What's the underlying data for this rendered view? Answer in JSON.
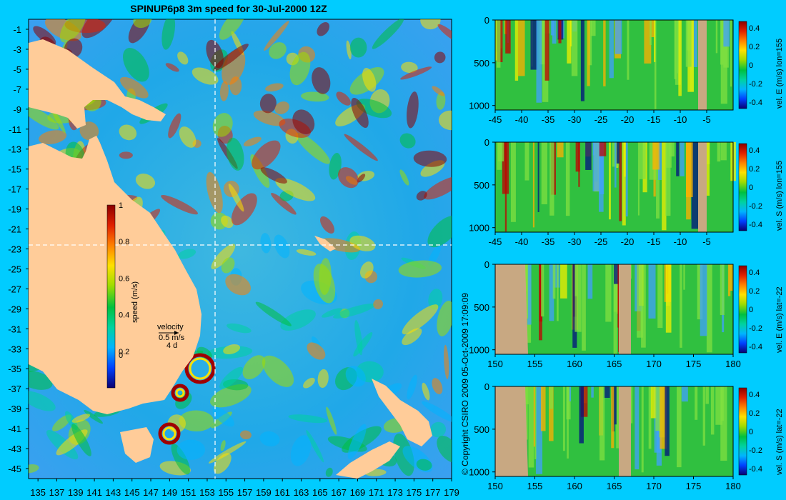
{
  "title": "SPINUP6p8 3m speed for 30-Jul-2000 12Z",
  "copyright": "© Copyright CSIRO 2009  05-Oct-2009 17:09:09",
  "colors": {
    "background": "#00ccff",
    "land": "#ffcc99",
    "section_land": "#c8a882",
    "ramp": [
      "#0a0070",
      "#0040ff",
      "#00b4ff",
      "#00d2a0",
      "#00c040",
      "#a0dc00",
      "#ffe000",
      "#ff8000",
      "#e02000",
      "#8c0000"
    ]
  },
  "map": {
    "cbar": {
      "label": "speed (m/s)",
      "ticks": [
        "1",
        "0.8",
        "0.6",
        "0.4",
        "0.2",
        "0"
      ]
    },
    "velocity_key": {
      "label": "velocity",
      "speed": "0.5 m/s",
      "time": "4 d"
    },
    "xticks": [
      "135",
      "137",
      "139",
      "141",
      "143",
      "145",
      "147",
      "149",
      "151",
      "153",
      "155",
      "157",
      "159",
      "161",
      "163",
      "165",
      "167",
      "169",
      "171",
      "173",
      "175",
      "177",
      "179"
    ],
    "yticks": [
      "-1",
      "-3",
      "-5",
      "-7",
      "-9",
      "-11",
      "-13",
      "-15",
      "-17",
      "-19",
      "-21",
      "-23",
      "-25",
      "-27",
      "-29",
      "-31",
      "-33",
      "-35",
      "-37",
      "-39",
      "-41",
      "-43",
      "-45"
    ]
  },
  "panels": [
    {
      "label": "vel. E (m/s) lon=155",
      "xticks": [
        "-45",
        "-40",
        "-35",
        "-30",
        "-25",
        "-20",
        "-15",
        "-10",
        "-5"
      ],
      "yticks": [
        "0",
        "500",
        "1000"
      ],
      "cticks": [
        "0.4",
        "0.2",
        "0",
        "-0.2",
        "-0.4"
      ]
    },
    {
      "label": "vel. S (m/s) lon=155",
      "xticks": [
        "-45",
        "-40",
        "-35",
        "-30",
        "-25",
        "-20",
        "-15",
        "-10",
        "-5"
      ],
      "yticks": [
        "0",
        "500",
        "1000"
      ],
      "cticks": [
        "0.4",
        "0.2",
        "0",
        "-0.2",
        "-0.4"
      ]
    },
    {
      "label": "vel. E (m/s) lat=-22",
      "xticks": [
        "150",
        "155",
        "160",
        "165",
        "170",
        "175",
        "180"
      ],
      "yticks": [
        "0",
        "500",
        "1000"
      ],
      "cticks": [
        "0.4",
        "0.2",
        "0",
        "-0.2",
        "-0.4"
      ]
    },
    {
      "label": "vel. S (m/s) lat=-22",
      "xticks": [
        "150",
        "155",
        "160",
        "165",
        "170",
        "175",
        "180"
      ],
      "yticks": [
        "0",
        "500",
        "1000"
      ],
      "cticks": [
        "0.4",
        "0.2",
        "0",
        "-0.2",
        "-0.4"
      ]
    }
  ],
  "chart_data": [
    {
      "type": "heatmap",
      "title": "SPINUP6p8 3m speed for 30-Jul-2000 12Z",
      "xlabel": "",
      "ylabel": "",
      "xlim": [
        135,
        180
      ],
      "ylim": [
        -45,
        0
      ],
      "colorbar": {
        "label": "speed (m/s)",
        "range": [
          0,
          1
        ]
      },
      "xticks": [
        135,
        137,
        139,
        141,
        143,
        145,
        147,
        149,
        151,
        153,
        155,
        157,
        159,
        161,
        163,
        165,
        167,
        169,
        171,
        173,
        175,
        177,
        179
      ],
      "yticks": [
        -1,
        -3,
        -5,
        -7,
        -9,
        -11,
        -13,
        -15,
        -17,
        -19,
        -21,
        -23,
        -25,
        -27,
        -29,
        -31,
        -33,
        -35,
        -37,
        -39,
        -41,
        -43,
        -45
      ],
      "section_lines": {
        "lon": 155,
        "lat": -22
      }
    },
    {
      "type": "heatmap",
      "colorbar": {
        "label": "vel. E (m/s) lon=155",
        "range": [
          -0.4,
          0.4
        ]
      },
      "xlim": [
        -45,
        0
      ],
      "ylim": [
        1050,
        0
      ]
    },
    {
      "type": "heatmap",
      "colorbar": {
        "label": "vel. S (m/s) lon=155",
        "range": [
          -0.4,
          0.4
        ]
      },
      "xlim": [
        -45,
        0
      ],
      "ylim": [
        1050,
        0
      ]
    },
    {
      "type": "heatmap",
      "colorbar": {
        "label": "vel. E (m/s) lat=-22",
        "range": [
          -0.4,
          0.4
        ]
      },
      "xlim": [
        150,
        180
      ],
      "ylim": [
        1050,
        0
      ]
    },
    {
      "type": "heatmap",
      "colorbar": {
        "label": "vel. S (m/s) lat=-22",
        "range": [
          -0.4,
          0.4
        ]
      },
      "xlim": [
        150,
        180
      ],
      "ylim": [
        1050,
        0
      ]
    }
  ]
}
